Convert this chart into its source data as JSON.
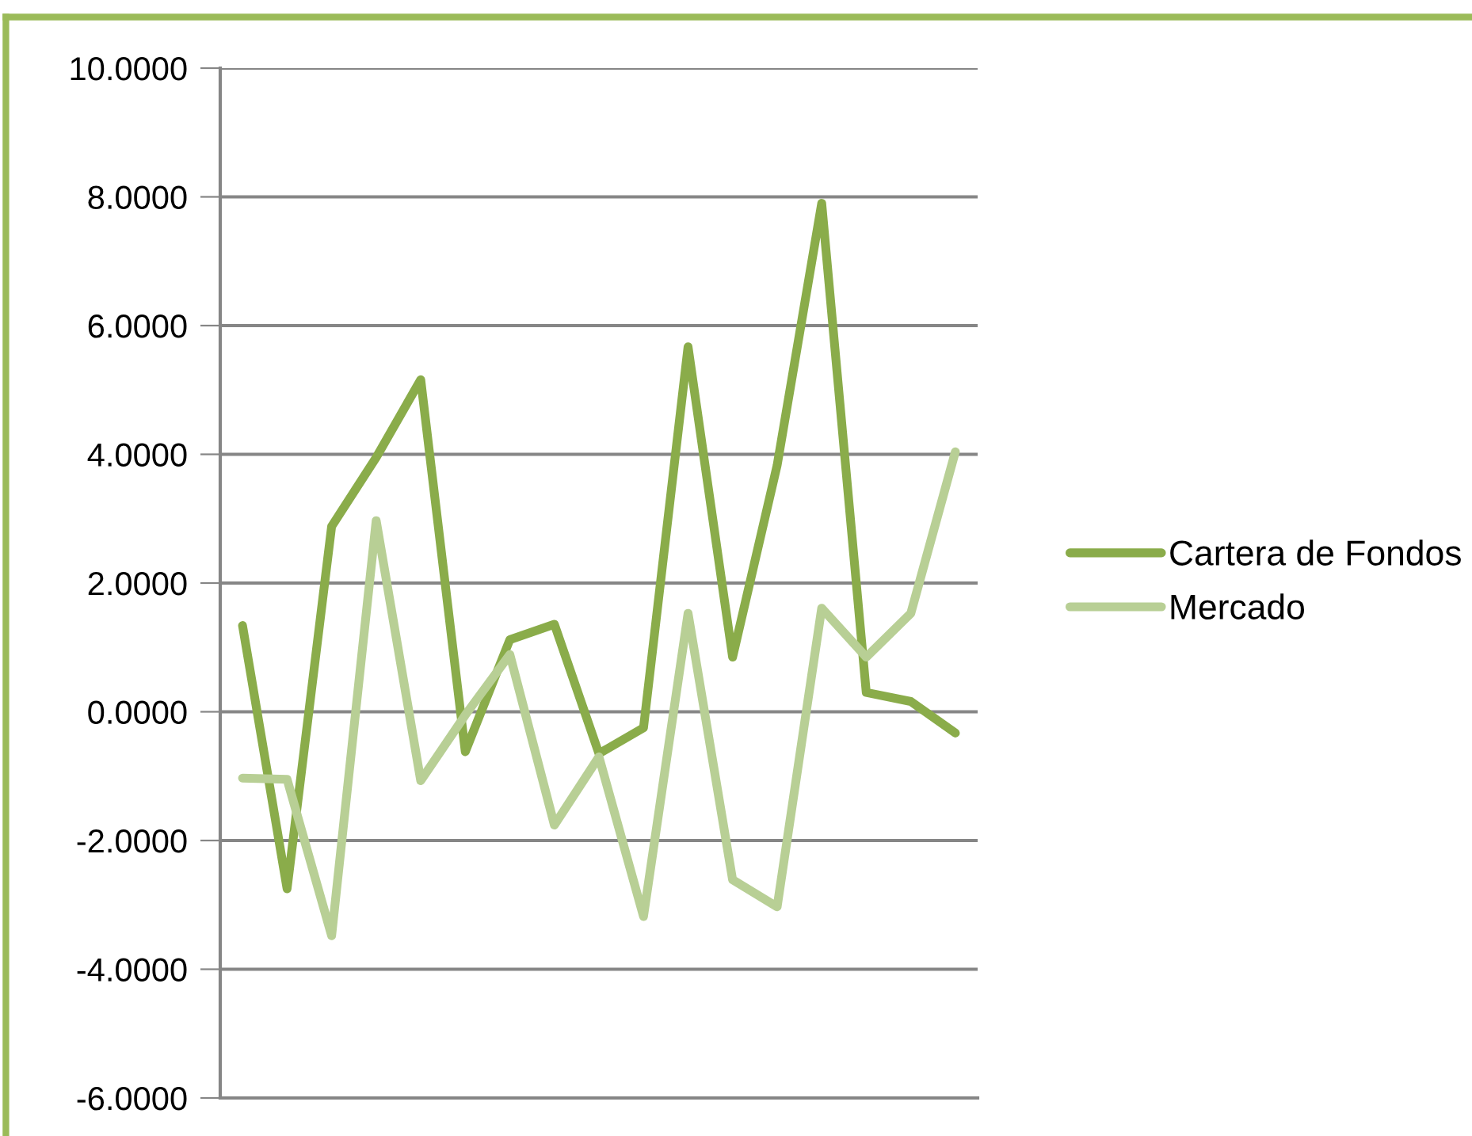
{
  "chart_data": {
    "type": "line",
    "categories": [
      null,
      null,
      null,
      null,
      null,
      null,
      null,
      null,
      null,
      null,
      null,
      null,
      null,
      null,
      null,
      null,
      null
    ],
    "series": [
      {
        "name": "Cartera de Fondos",
        "color": "#8aac4a",
        "values": [
          1.34,
          -2.75,
          2.88,
          3.95,
          5.16,
          -0.62,
          1.12,
          1.36,
          -0.65,
          -0.25,
          5.67,
          0.85,
          3.83,
          7.9,
          0.3,
          0.16,
          -0.33
        ]
      },
      {
        "name": "Mercado",
        "color": "#b8cf95",
        "values": [
          -1.03,
          -1.05,
          -3.48,
          2.97,
          -1.07,
          -0.05,
          0.89,
          -1.76,
          -0.7,
          -3.18,
          1.53,
          -2.61,
          -3.03,
          1.61,
          0.85,
          1.53,
          4.04
        ]
      }
    ],
    "ylim": [
      -6,
      10
    ],
    "yticks": [
      {
        "value": -6,
        "label": "-6.0000"
      },
      {
        "value": -4,
        "label": "-4.0000"
      },
      {
        "value": -2,
        "label": "-2.0000"
      },
      {
        "value": 0,
        "label": "0.0000"
      },
      {
        "value": 2,
        "label": "2.0000"
      },
      {
        "value": 4,
        "label": "4.0000"
      },
      {
        "value": 6,
        "label": "6.0000"
      },
      {
        "value": 8,
        "label": "8.0000"
      },
      {
        "value": 10,
        "label": "10.0000"
      }
    ],
    "grid": "y",
    "legend": "right",
    "marker": "none",
    "line_style": "solid"
  }
}
